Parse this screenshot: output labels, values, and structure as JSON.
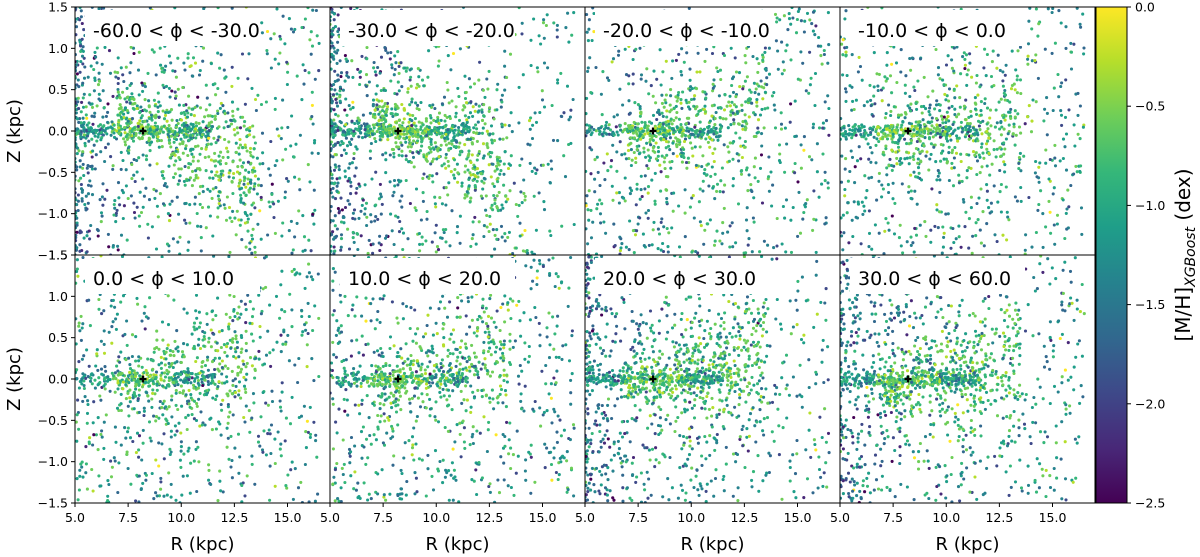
{
  "chart_data": {
    "type": "scatter",
    "panels": [
      {
        "label": "-60.0 < ϕ < -30.0",
        "phi_range": [
          -60.0,
          -30.0
        ]
      },
      {
        "label": "-30.0 < ϕ < -20.0",
        "phi_range": [
          -30.0,
          -20.0
        ]
      },
      {
        "label": "-20.0 < ϕ < -10.0",
        "phi_range": [
          -20.0,
          -10.0
        ]
      },
      {
        "label": "-10.0 < ϕ < 0.0",
        "phi_range": [
          -10.0,
          0.0
        ]
      },
      {
        "label": "0.0 < ϕ < 10.0",
        "phi_range": [
          0.0,
          10.0
        ]
      },
      {
        "label": "10.0 < ϕ < 20.0",
        "phi_range": [
          10.0,
          20.0
        ]
      },
      {
        "label": "20.0 < ϕ < 30.0",
        "phi_range": [
          20.0,
          30.0
        ]
      },
      {
        "label": "30.0 < ϕ < 60.0",
        "phi_range": [
          30.0,
          60.0
        ]
      }
    ],
    "xlabel": "R (kpc)",
    "ylabel": "Z (kpc)",
    "xlim": [
      5.0,
      17.0
    ],
    "ylim": [
      -1.5,
      1.5
    ],
    "xticks": [
      5.0,
      7.5,
      10.0,
      12.5,
      15.0
    ],
    "yticks": [
      -1.5,
      -1.0,
      -0.5,
      0.0,
      0.5,
      1.0,
      1.5
    ],
    "xtick_labels": [
      "5.0",
      "7.5",
      "10.0",
      "12.5",
      "15.0"
    ],
    "ytick_labels": [
      "−1.5",
      "−1.0",
      "−0.5",
      "0.0",
      "0.5",
      "1.0",
      "1.5"
    ],
    "sun_marker": {
      "R": 8.2,
      "Z": 0.0
    },
    "colorbar": {
      "label_main": "[M/H]",
      "label_sub": "XGBoost",
      "label_unit": " (dex)",
      "range": [
        -2.5,
        0.0
      ],
      "ticks": [
        0.0,
        -0.5,
        -1.0,
        -1.5,
        -2.0,
        -2.5
      ],
      "tick_labels": [
        "0.0",
        "−0.5",
        "−1.0",
        "−1.5",
        "−2.0",
        "−2.5"
      ],
      "colormap": "viridis",
      "colors": [
        "#440154",
        "#482878",
        "#3e4989",
        "#31688e",
        "#26828e",
        "#1f9e89",
        "#35b779",
        "#6ece58",
        "#b5de2b",
        "#fde725"
      ]
    }
  }
}
